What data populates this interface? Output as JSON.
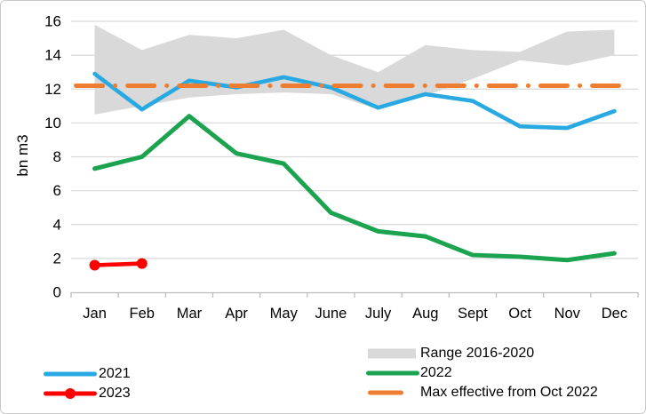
{
  "chart_data": {
    "type": "line",
    "title": "",
    "ylabel": "bn m3",
    "ylim": [
      0,
      16
    ],
    "y_ticks": [
      0,
      2,
      4,
      6,
      8,
      10,
      12,
      14,
      16
    ],
    "grid": true,
    "legend_position": "bottom",
    "categories": [
      "Jan",
      "Feb",
      "Mar",
      "Apr",
      "May",
      "June",
      "July",
      "Aug",
      "Sept",
      "Oct",
      "Nov",
      "Dec"
    ],
    "series": [
      {
        "name": "Range 2016-2020",
        "type": "band",
        "color": "#D9D9D9",
        "upper": [
          15.8,
          14.3,
          15.2,
          15.0,
          15.5,
          14.0,
          13.0,
          14.6,
          14.3,
          14.2,
          15.4,
          15.5
        ],
        "lower": [
          10.5,
          11.0,
          11.5,
          11.7,
          11.8,
          11.7,
          10.8,
          11.6,
          12.6,
          13.7,
          13.4,
          14.0
        ]
      },
      {
        "name": "2021",
        "type": "line",
        "color": "#29A9E1",
        "values": [
          12.9,
          10.8,
          12.5,
          12.1,
          12.7,
          12.1,
          10.9,
          11.7,
          11.3,
          9.8,
          9.7,
          10.7
        ]
      },
      {
        "name": "2022",
        "type": "line",
        "color": "#1CA350",
        "values": [
          7.3,
          8.0,
          10.4,
          8.2,
          7.6,
          4.7,
          3.6,
          3.3,
          2.2,
          2.1,
          1.9,
          2.3
        ]
      },
      {
        "name": "2023",
        "type": "line-marker",
        "color": "#FE0000",
        "values": [
          1.6,
          1.7,
          null,
          null,
          null,
          null,
          null,
          null,
          null,
          null,
          null,
          null
        ]
      },
      {
        "name": "Max effective from Oct 2022",
        "type": "dash-dot",
        "color": "#ED7D31",
        "values": [
          12.2,
          12.2,
          12.2,
          12.2,
          12.2,
          12.2,
          12.2,
          12.2,
          12.2,
          12.2,
          12.2,
          12.2
        ]
      }
    ]
  },
  "legend": {
    "left_column": [
      {
        "label": "2021",
        "swatch": "line",
        "series": "2021"
      },
      {
        "label": "2023",
        "swatch": "line-dot",
        "series": "2023"
      }
    ],
    "right_column": [
      {
        "label": "Range 2016-2020",
        "swatch": "band",
        "series": "Range 2016-2020"
      },
      {
        "label": "2022",
        "swatch": "line",
        "series": "2022"
      },
      {
        "label": "Max effective from Oct 2022",
        "swatch": "dash",
        "series": "Max effective from Oct 2022"
      }
    ]
  },
  "style_colors": {
    "band": "#D9D9D9",
    "gridline": "#D9D9D9",
    "axis": "#BDBDBD",
    "text": "#000000",
    "blue_2021": "#29A9E1",
    "green_2022": "#1CA350",
    "red_2023": "#FE0000",
    "orange_max": "#ED7D31"
  }
}
